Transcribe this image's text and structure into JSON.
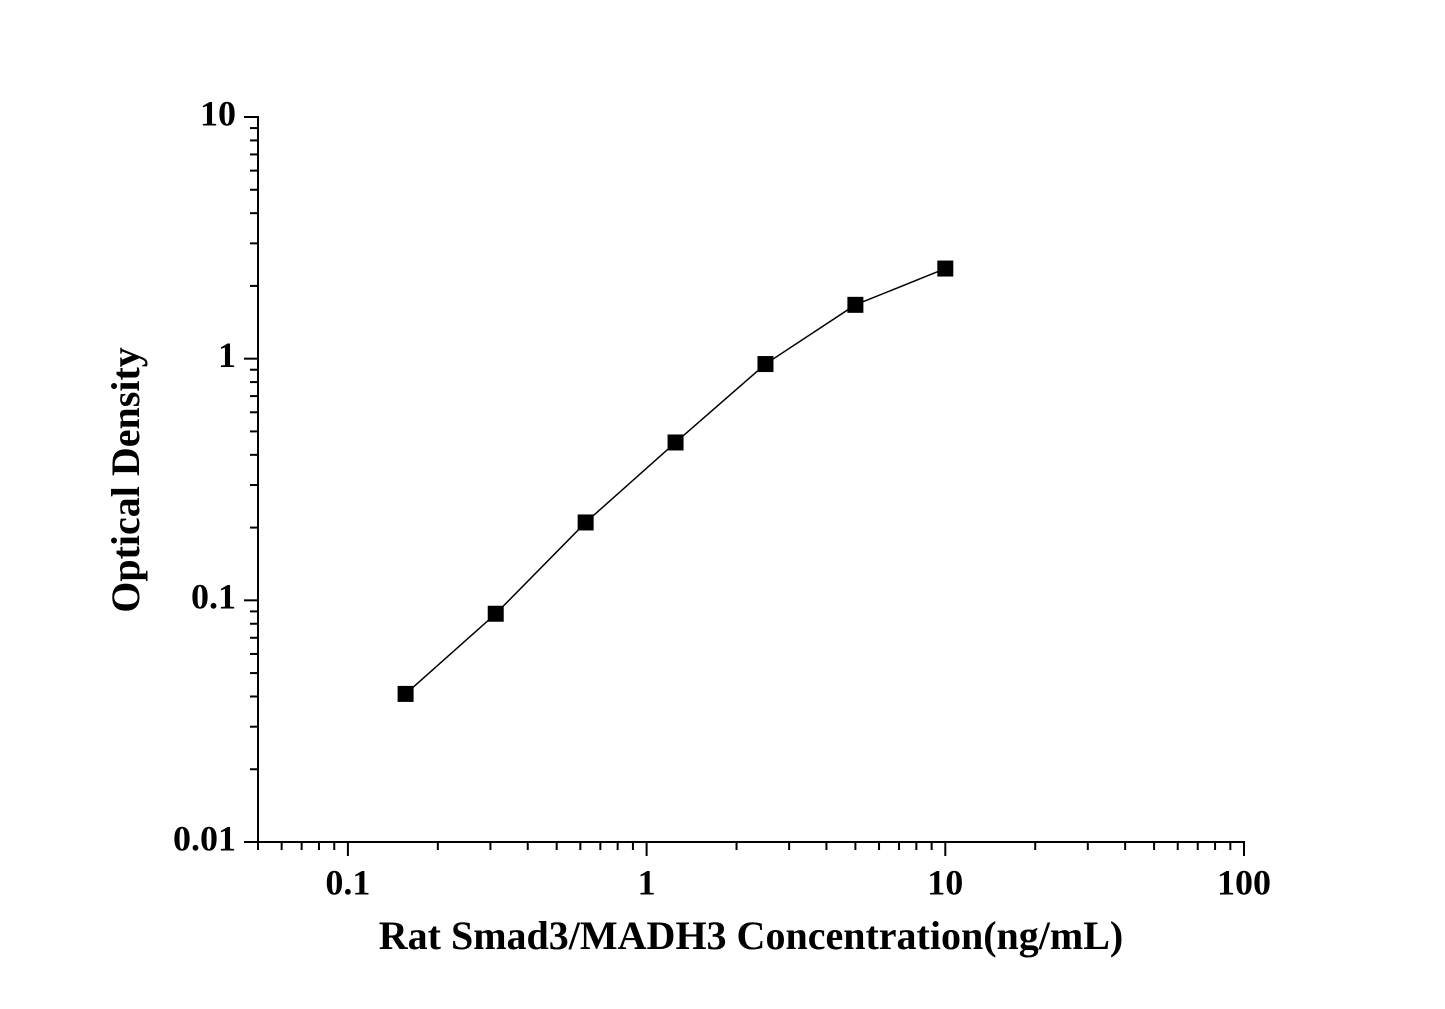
{
  "chart_data": {
    "type": "line",
    "x_label": "Rat Smad3/MADH3 Concentration(ng/mL)",
    "y_label": "Optical Density",
    "x": [
      0.156,
      0.3125,
      0.625,
      1.25,
      2.5,
      5,
      10
    ],
    "values": [
      0.041,
      0.088,
      0.21,
      0.45,
      0.95,
      1.67,
      2.36
    ],
    "color": "#000000",
    "marker": "square",
    "xscale": "log",
    "yscale": "log",
    "xlim": [
      0.05,
      100
    ],
    "ylim": [
      0.01,
      10
    ],
    "xticks": [
      0.1,
      1,
      10,
      100
    ],
    "yticks": [
      0.01,
      0.1,
      1,
      10
    ]
  }
}
